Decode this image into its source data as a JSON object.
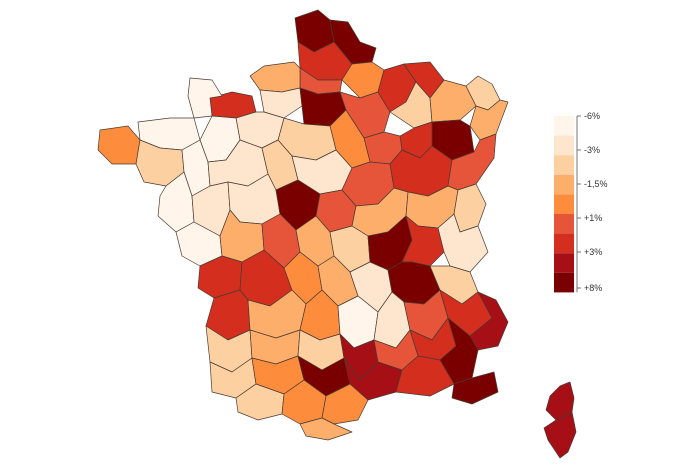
{
  "legend": {
    "title": "",
    "classes": [
      {
        "color": "#fff5eb"
      },
      {
        "color": "#fee6ce"
      },
      {
        "color": "#fdd0a2"
      },
      {
        "color": "#fdae6b"
      },
      {
        "color": "#fd8d3c"
      },
      {
        "color": "#e6553a"
      },
      {
        "color": "#d42e1f"
      },
      {
        "color": "#a50f15"
      },
      {
        "color": "#7a0000"
      }
    ],
    "tick_labels": [
      "-6%",
      "-3%",
      "-1,5%",
      "+1%",
      "+3%",
      "+8%"
    ]
  },
  "map": {
    "region": "France (departments) + Corsica",
    "color_scale": [
      "#fff5eb",
      "#fee6ce",
      "#fdd0a2",
      "#fdae6b",
      "#fd8d3c",
      "#e6553a",
      "#d42e1f",
      "#a50f15",
      "#7a0000"
    ]
  }
}
